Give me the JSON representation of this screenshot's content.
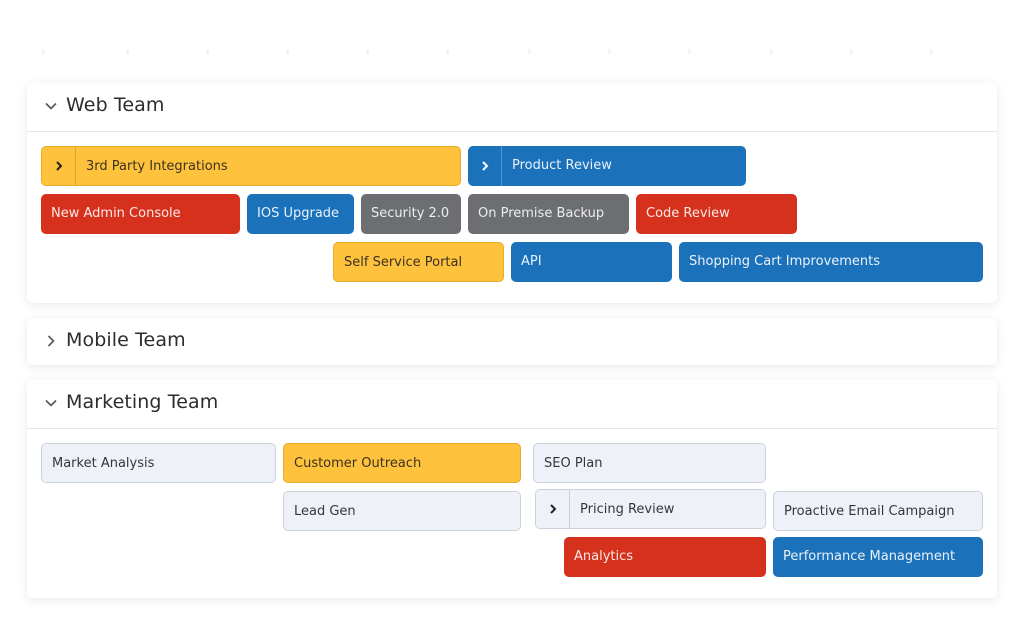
{
  "colors": {
    "yellow": "#ffc23d",
    "blue": "#1b72ba",
    "red": "#d5311c",
    "gray": "#6c6e72",
    "light": "#eef2f8"
  },
  "groups": [
    {
      "title": "Web Team",
      "expanded": true,
      "bars": [
        {
          "label": "3rd Party Integrations",
          "color": "yellow",
          "expandable": true
        },
        {
          "label": "Product Review",
          "color": "blue",
          "expandable": true
        },
        {
          "label": "New Admin Console",
          "color": "red"
        },
        {
          "label": "IOS Upgrade",
          "color": "blue"
        },
        {
          "label": "Security 2.0",
          "color": "gray"
        },
        {
          "label": "On Premise Backup",
          "color": "gray"
        },
        {
          "label": "Code Review",
          "color": "red"
        },
        {
          "label": "Self Service Portal",
          "color": "yellow"
        },
        {
          "label": "API",
          "color": "blue"
        },
        {
          "label": "Shopping Cart Improvements",
          "color": "blue"
        }
      ]
    },
    {
      "title": "Mobile Team",
      "expanded": false,
      "bars": []
    },
    {
      "title": "Marketing Team",
      "expanded": true,
      "bars": [
        {
          "label": "Market Analysis",
          "color": "light"
        },
        {
          "label": "Customer Outreach",
          "color": "yellow"
        },
        {
          "label": "SEO Plan",
          "color": "light"
        },
        {
          "label": "Lead Gen",
          "color": "light"
        },
        {
          "label": "Pricing Review",
          "color": "light",
          "expandable": true
        },
        {
          "label": "Proactive Email Campaign",
          "color": "light"
        },
        {
          "label": "Analytics",
          "color": "red"
        },
        {
          "label": "Performance Management",
          "color": "blue"
        }
      ]
    }
  ]
}
